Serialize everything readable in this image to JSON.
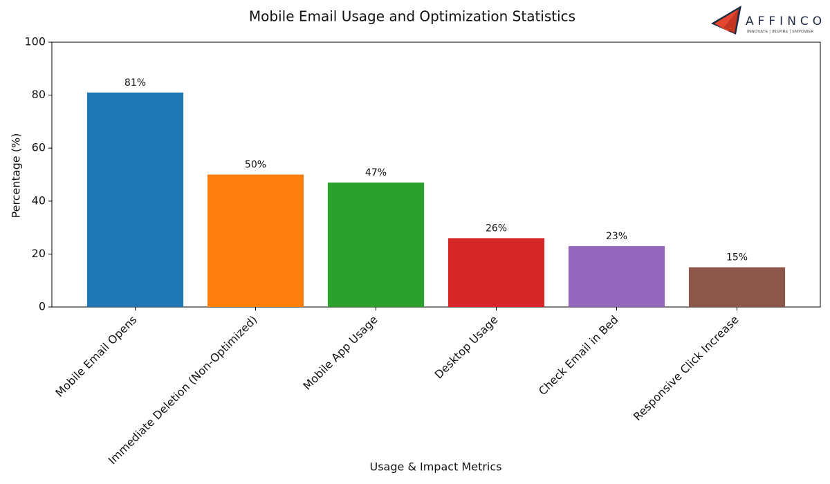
{
  "chart_data": {
    "type": "bar",
    "title": "Mobile Email Usage and Optimization Statistics",
    "x_label": "Usage & Impact Metrics",
    "y_label": "Percentage (%)",
    "categories": [
      "Mobile Email Opens",
      "Immediate Deletion (Non-Optimized)",
      "Mobile App Usage",
      "Desktop Usage",
      "Check Email in Bed",
      "Responsive Click Increase"
    ],
    "values": [
      81,
      50,
      47,
      26,
      23,
      15
    ],
    "value_labels": [
      "81%",
      "50%",
      "47%",
      "26%",
      "23%",
      "15%"
    ],
    "colors": [
      "#1f77b4",
      "#ff7f0e",
      "#2ca02c",
      "#d62728",
      "#9467bd",
      "#8c564b"
    ],
    "ylim": [
      0,
      100
    ],
    "yticks": [
      0,
      20,
      40,
      60,
      80,
      100
    ],
    "grid": false
  },
  "logo": {
    "name": "AFFINCO",
    "tagline": "INNOVATE | INSPIRE | EMPOWER"
  }
}
